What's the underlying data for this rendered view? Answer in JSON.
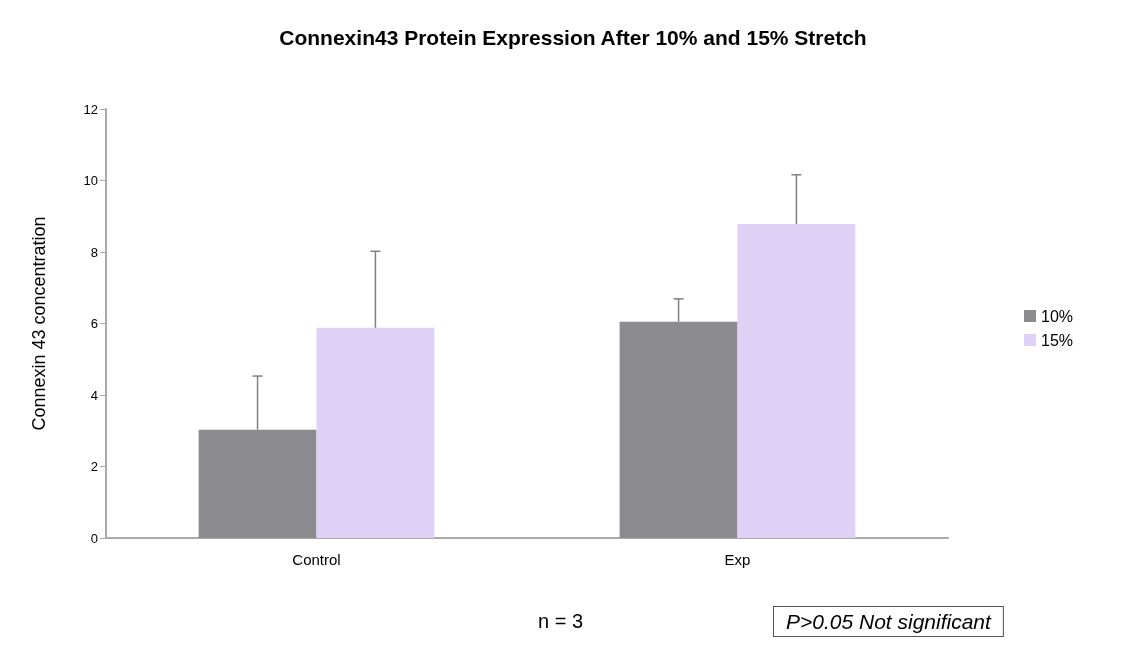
{
  "chart_data": {
    "type": "bar",
    "title": "Connexin43 Protein Expression After 10% and 15% Stretch",
    "ylabel": "Connexin 43 concentration",
    "categories": [
      "Control",
      "Exp"
    ],
    "series": [
      {
        "name": "10%",
        "color": "#8c8b90",
        "values": [
          3.03,
          6.05
        ],
        "errors": [
          [
            3.03,
            4.53
          ],
          [
            6.05,
            6.69
          ]
        ]
      },
      {
        "name": "15%",
        "color": "#dfd0f5",
        "values": [
          5.88,
          8.78
        ],
        "errors": [
          [
            5.88,
            8.02
          ],
          [
            8.78,
            10.16
          ]
        ]
      }
    ],
    "ylim": [
      0,
      12
    ],
    "yticks": [
      0,
      2,
      4,
      6,
      8,
      10,
      12
    ],
    "grid": false,
    "legend": "right",
    "annotations": [
      "n = 3",
      "P>0.05 Not significant"
    ]
  }
}
